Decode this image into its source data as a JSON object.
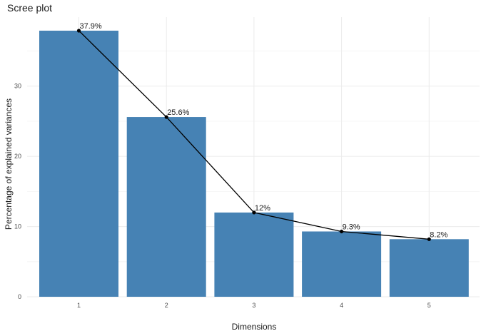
{
  "chart_data": {
    "type": "bar",
    "title": "Scree plot",
    "xlabel": "Dimensions",
    "ylabel": "Percentage of explained variances",
    "categories": [
      "1",
      "2",
      "3",
      "4",
      "5"
    ],
    "values": [
      37.9,
      25.6,
      12.0,
      9.3,
      8.2
    ],
    "data_labels": [
      "37.9%",
      "25.6%",
      "12%",
      "9.3%",
      "8.2%"
    ],
    "ylim": [
      0,
      38
    ],
    "yticks": [
      0,
      10,
      20,
      30
    ],
    "grid": true,
    "legend": "none",
    "overlay": "line-with-points",
    "colors": {
      "bar": "#4682b4",
      "line": "#000000",
      "point": "#000000"
    }
  }
}
